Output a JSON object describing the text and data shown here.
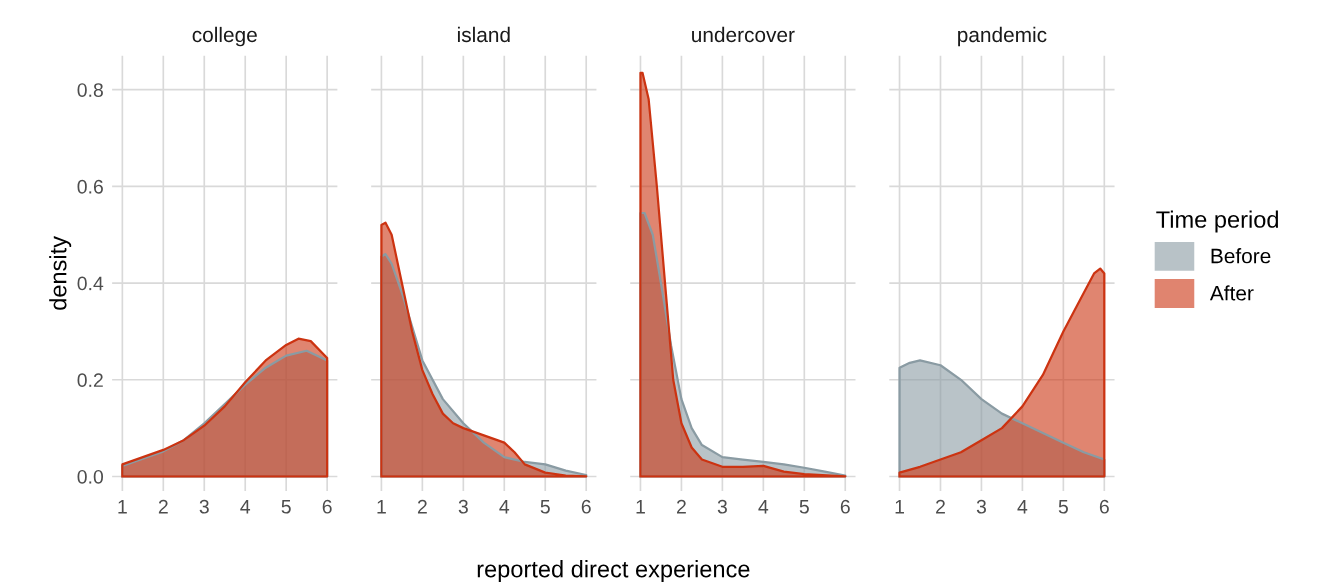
{
  "chart_data": [
    {
      "type": "area",
      "title": "college",
      "ylabel": "density",
      "xlabel": "reported direct experience",
      "xlim": [
        0.75,
        6.25
      ],
      "ylim": [
        -0.03,
        0.87
      ],
      "xticks": [
        1,
        2,
        3,
        4,
        5,
        6
      ],
      "yticks": [
        {
          "value": 0.0,
          "label": "0.0"
        },
        0.2,
        0.4,
        0.6,
        0.8
      ],
      "grid": true,
      "legend": "right",
      "legend_title": "Time period",
      "series": [
        {
          "name": "Before",
          "color": "#8a9ba3",
          "x": [
            1,
            1.5,
            2,
            2.5,
            3,
            3.5,
            4,
            4.5,
            5,
            5.5,
            6
          ],
          "values": [
            0.022,
            0.037,
            0.052,
            0.075,
            0.11,
            0.15,
            0.19,
            0.225,
            0.25,
            0.26,
            0.24
          ]
        },
        {
          "name": "After",
          "color": "#cc3311",
          "x": [
            1,
            1.5,
            2,
            2.5,
            3,
            3.5,
            4,
            4.5,
            5,
            5.3,
            5.6,
            6
          ],
          "values": [
            0.025,
            0.04,
            0.055,
            0.075,
            0.105,
            0.145,
            0.195,
            0.24,
            0.272,
            0.285,
            0.28,
            0.245
          ]
        }
      ]
    },
    {
      "type": "area",
      "title": "island",
      "xlim": [
        0.75,
        6.25
      ],
      "ylim": [
        -0.03,
        0.87
      ],
      "xticks": [
        1,
        2,
        3,
        4,
        5,
        6
      ],
      "yticks": [
        0,
        0.2,
        0.4,
        0.6,
        0.8
      ],
      "grid": true,
      "tick_labels": "x",
      "series": [
        {
          "color": "#8a9ba3",
          "x": [
            1,
            1.1,
            1.25,
            1.5,
            2,
            2.5,
            3,
            3.5,
            4,
            4.5,
            5,
            5.5,
            6
          ],
          "values": [
            0.455,
            0.46,
            0.44,
            0.38,
            0.24,
            0.16,
            0.11,
            0.07,
            0.04,
            0.03,
            0.025,
            0.012,
            0.003
          ]
        },
        {
          "color": "#cc3311",
          "x": [
            1,
            1.1,
            1.25,
            1.5,
            1.75,
            2,
            2.25,
            2.5,
            2.75,
            3,
            3.5,
            4,
            4.25,
            4.5,
            5,
            5.5,
            6
          ],
          "values": [
            0.52,
            0.525,
            0.5,
            0.4,
            0.3,
            0.22,
            0.17,
            0.13,
            0.11,
            0.1,
            0.085,
            0.07,
            0.05,
            0.025,
            0.008,
            0.002,
            0.0
          ]
        }
      ]
    },
    {
      "type": "area",
      "title": "undercover",
      "xlim": [
        0.75,
        6.25
      ],
      "ylim": [
        -0.03,
        0.87
      ],
      "xticks": [
        1,
        2,
        3,
        4,
        5,
        6
      ],
      "yticks": [
        0,
        0.2,
        0.4,
        0.6,
        0.8
      ],
      "grid": true,
      "tick_labels": "x",
      "series": [
        {
          "color": "#8a9ba3",
          "x": [
            1,
            1.1,
            1.3,
            1.5,
            1.75,
            2,
            2.25,
            2.5,
            3,
            3.5,
            4,
            4.5,
            5,
            5.5,
            6
          ],
          "values": [
            0.545,
            0.545,
            0.5,
            0.4,
            0.27,
            0.16,
            0.1,
            0.065,
            0.04,
            0.035,
            0.03,
            0.025,
            0.018,
            0.01,
            0.002
          ]
        },
        {
          "color": "#cc3311",
          "x": [
            1,
            1.05,
            1.2,
            1.4,
            1.6,
            1.8,
            2,
            2.25,
            2.5,
            3,
            3.5,
            4,
            4.5,
            5,
            6
          ],
          "values": [
            0.835,
            0.835,
            0.78,
            0.6,
            0.4,
            0.2,
            0.11,
            0.06,
            0.035,
            0.02,
            0.02,
            0.022,
            0.01,
            0.005,
            0.0
          ]
        }
      ]
    },
    {
      "type": "area",
      "title": "pandemic",
      "xlim": [
        0.75,
        6.25
      ],
      "ylim": [
        -0.03,
        0.87
      ],
      "xticks": [
        1,
        2,
        3,
        4,
        5,
        6
      ],
      "yticks": [
        0,
        0.2,
        0.4,
        0.6,
        0.8
      ],
      "grid": true,
      "tick_labels": "x",
      "series": [
        {
          "color": "#8a9ba3",
          "x": [
            1,
            1.25,
            1.5,
            2,
            2.5,
            3,
            3.5,
            4,
            4.5,
            5,
            5.5,
            6
          ],
          "values": [
            0.225,
            0.235,
            0.24,
            0.23,
            0.2,
            0.16,
            0.13,
            0.11,
            0.09,
            0.07,
            0.05,
            0.035
          ]
        },
        {
          "color": "#cc3311",
          "x": [
            1,
            1.5,
            2,
            2.5,
            3,
            3.5,
            4,
            4.5,
            5,
            5.5,
            5.75,
            5.9,
            6
          ],
          "values": [
            0.008,
            0.02,
            0.035,
            0.05,
            0.075,
            0.1,
            0.145,
            0.21,
            0.3,
            0.38,
            0.42,
            0.43,
            0.42
          ]
        }
      ]
    }
  ]
}
